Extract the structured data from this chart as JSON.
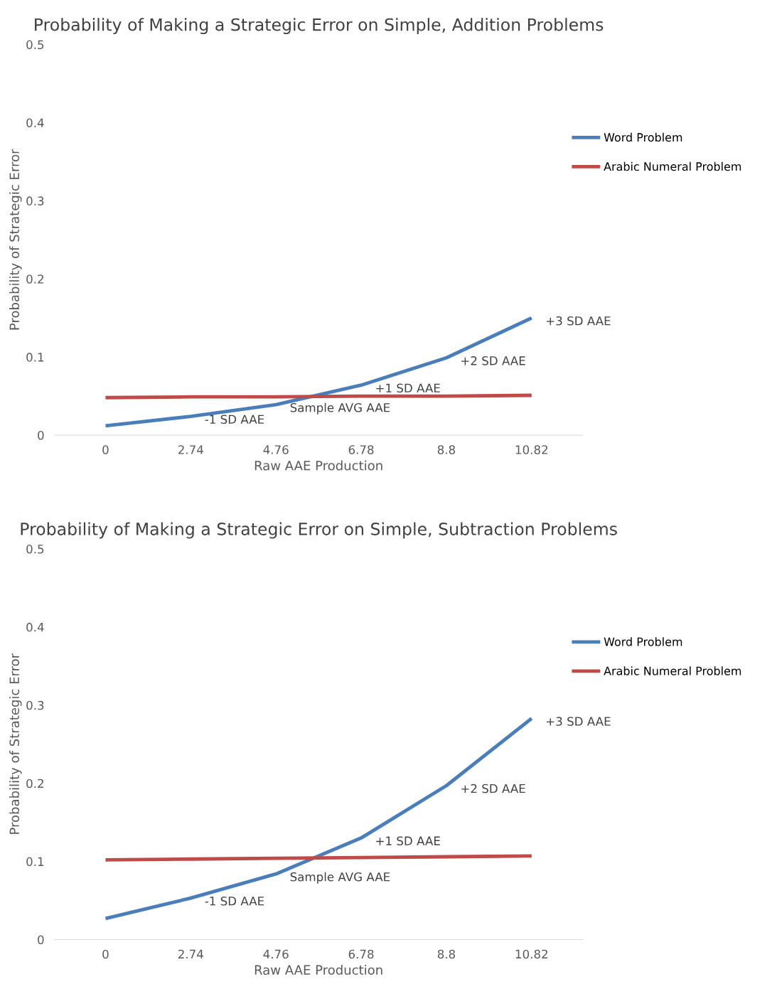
{
  "chart_data": [
    {
      "type": "line",
      "title": "Probability of Making a Strategic Error on Simple, Addition Problems",
      "xlabel": "Raw AAE Production",
      "ylabel": "Probability of Strategic Error",
      "categories": [
        "0",
        "2.74",
        "4.76",
        "6.78",
        "8.8",
        "10.82"
      ],
      "series": [
        {
          "name": "Word Problem",
          "color": "#4a7ebb",
          "values": [
            0.012,
            0.024,
            0.039,
            0.064,
            0.099,
            0.15
          ]
        },
        {
          "name": "Arabic Numeral Problem",
          "color": "#be4b48",
          "values": [
            0.048,
            0.049,
            0.049,
            0.05,
            0.05,
            0.051
          ]
        }
      ],
      "ylim": [
        0,
        0.5
      ],
      "yticks": [
        0,
        0.1,
        0.2,
        0.3,
        0.4,
        0.5
      ],
      "grid": false,
      "legend": "upper right",
      "marker": "none",
      "line_style": "solid",
      "annotations": [
        {
          "text": "-1 SD AAE",
          "x": "2.74",
          "y": 0.024
        },
        {
          "text": "Sample AVG AAE",
          "x": "4.76",
          "y": 0.039
        },
        {
          "text": "+1 SD AAE",
          "x": "6.78",
          "y": 0.064
        },
        {
          "text": "+2 SD AAE",
          "x": "8.8",
          "y": 0.099
        },
        {
          "text": "+3 SD AAE",
          "x": "10.82",
          "y": 0.15
        }
      ]
    },
    {
      "type": "line",
      "title": "Probability of Making a Strategic Error on Simple, Subtraction Problems",
      "xlabel": "Raw AAE Production",
      "ylabel": "Probability of Strategic Error",
      "categories": [
        "0",
        "2.74",
        "4.76",
        "6.78",
        "8.8",
        "10.82"
      ],
      "series": [
        {
          "name": "Word Problem",
          "color": "#4a7ebb",
          "values": [
            0.027,
            0.053,
            0.084,
            0.13,
            0.197,
            0.283
          ]
        },
        {
          "name": "Arabic Numeral Problem",
          "color": "#be4b48",
          "values": [
            0.102,
            0.103,
            0.104,
            0.105,
            0.106,
            0.107
          ]
        }
      ],
      "ylim": [
        0,
        0.5
      ],
      "yticks": [
        0,
        0.1,
        0.2,
        0.3,
        0.4,
        0.5
      ],
      "grid": false,
      "legend": "upper right",
      "marker": "none",
      "line_style": "solid",
      "annotations": [
        {
          "text": "-1 SD AAE",
          "x": "2.74",
          "y": 0.053
        },
        {
          "text": "Sample AVG AAE",
          "x": "4.76",
          "y": 0.084
        },
        {
          "text": "+1 SD AAE",
          "x": "6.78",
          "y": 0.13
        },
        {
          "text": "+2 SD AAE",
          "x": "8.8",
          "y": 0.197
        },
        {
          "text": "+3 SD AAE",
          "x": "10.82",
          "y": 0.283
        }
      ]
    }
  ]
}
